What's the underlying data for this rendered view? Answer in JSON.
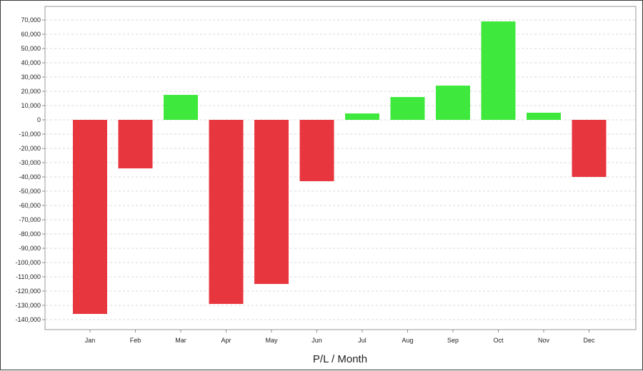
{
  "chart_data": {
    "type": "bar",
    "title": "",
    "xlabel": "P/L / Month",
    "ylabel": "",
    "categories": [
      "Jan",
      "Feb",
      "Mar",
      "Apr",
      "May",
      "Jun",
      "Jul",
      "Aug",
      "Sep",
      "Oct",
      "Nov",
      "Dec"
    ],
    "values": [
      -136000,
      -34000,
      17500,
      -129000,
      -115000,
      -43000,
      4500,
      16000,
      24000,
      69000,
      5000,
      -40000
    ],
    "ylim": [
      -145000,
      78000
    ],
    "yticks": [
      70000,
      60000,
      50000,
      40000,
      30000,
      20000,
      10000,
      0,
      -10000,
      -20000,
      -30000,
      -40000,
      -50000,
      -60000,
      -70000,
      -80000,
      -90000,
      -100000,
      -110000,
      -120000,
      -130000,
      -140000
    ],
    "ytick_labels": [
      "70,000",
      "60,000",
      "50,000",
      "40,000",
      "30,000",
      "20,000",
      "10,000",
      "0",
      "-10,000",
      "-20,000",
      "-30,000",
      "-40,000",
      "-50,000",
      "-60,000",
      "-70,000",
      "-80,000",
      "-90,000",
      "-100,000",
      "-110,000",
      "-120,000",
      "-130,000",
      "-140,000"
    ],
    "grid": true,
    "legend": "none",
    "colors": {
      "positive": "#3ee83c",
      "negative": "#e8363e",
      "grid": "#d8d8d8",
      "axis": "#888888"
    }
  }
}
